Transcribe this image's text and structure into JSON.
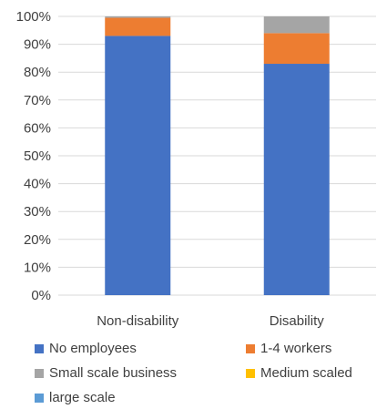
{
  "chart_data": {
    "type": "bar",
    "stacked": true,
    "percent_axis": true,
    "categories": [
      "Non-disability",
      "Disability"
    ],
    "series": [
      {
        "name": "No employees",
        "color": "#4472C4",
        "values": [
          93,
          83
        ]
      },
      {
        "name": "1-4 workers",
        "color": "#ED7D31",
        "values": [
          6.5,
          11
        ]
      },
      {
        "name": "Small scale business",
        "color": "#A5A5A5",
        "values": [
          0.5,
          6
        ]
      },
      {
        "name": "Medium scaled",
        "color": "#FFC000",
        "values": [
          0,
          0
        ]
      },
      {
        "name": "large scale",
        "color": "#5B9BD5",
        "values": [
          0,
          0
        ]
      }
    ],
    "ylim": [
      0,
      100
    ],
    "yticks": [
      "0%",
      "10%",
      "20%",
      "30%",
      "40%",
      "50%",
      "60%",
      "70%",
      "80%",
      "90%",
      "100%"
    ],
    "grid": true,
    "legend_position": "bottom",
    "title": "",
    "xlabel": "",
    "ylabel": ""
  }
}
